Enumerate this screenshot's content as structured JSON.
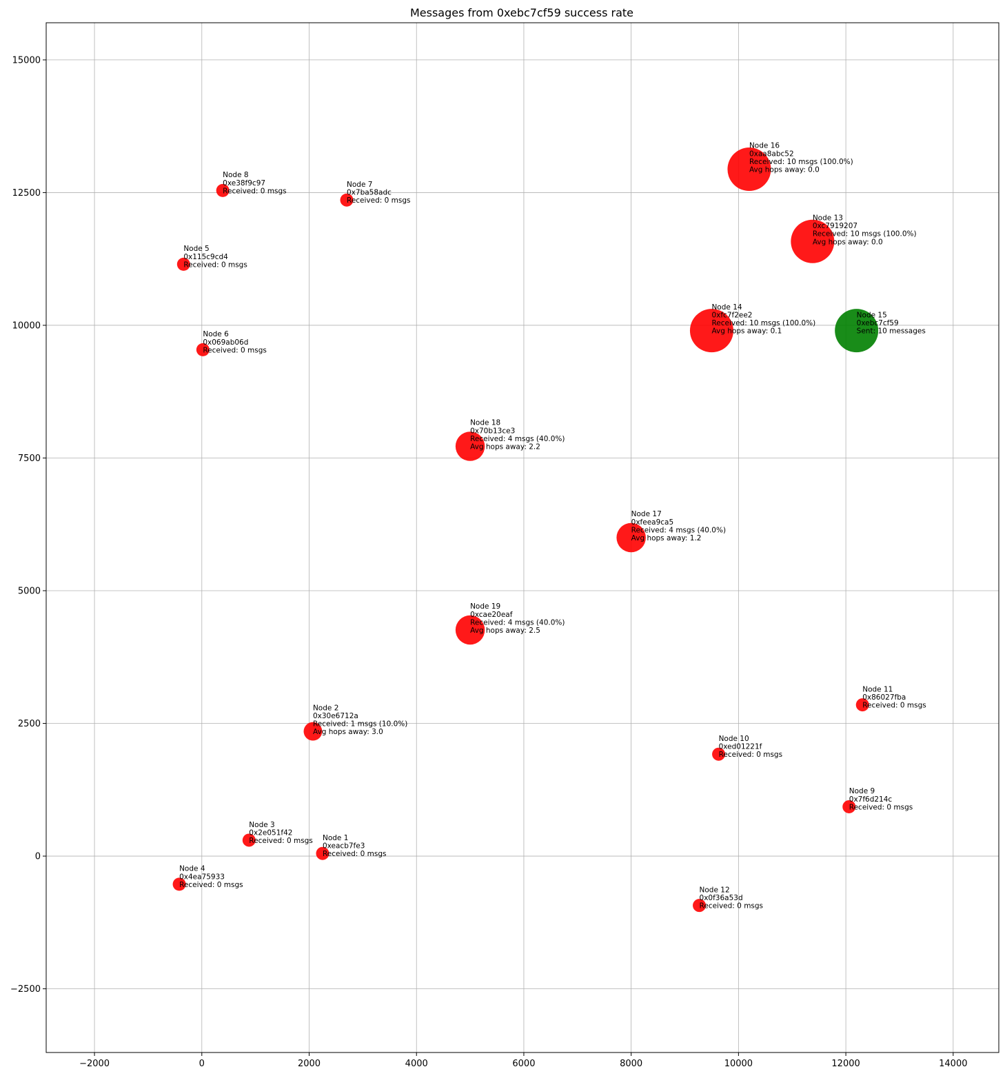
{
  "chart_data": {
    "type": "scatter",
    "title": "Messages from 0xebc7cf59 success rate",
    "xlabel": "",
    "ylabel": "",
    "xlim": [
      -2900,
      14850
    ],
    "ylim": [
      -3700,
      15700
    ],
    "xticks": [
      -2000,
      0,
      2000,
      4000,
      6000,
      8000,
      10000,
      12000,
      14000
    ],
    "xtick_labels": [
      "−2000",
      "0",
      "2000",
      "4000",
      "6000",
      "8000",
      "10000",
      "12000",
      "14000"
    ],
    "yticks": [
      -2500,
      0,
      2500,
      5000,
      7500,
      10000,
      12500,
      15000
    ],
    "ytick_labels": [
      "−2500",
      "0",
      "2500",
      "5000",
      "7500",
      "10000",
      "12500",
      "15000"
    ],
    "grid": true,
    "colors": {
      "sender": "#008000",
      "receiver": "#ff0000"
    },
    "points": [
      {
        "x": 2250,
        "y": 50,
        "role": "receiver",
        "received": 0,
        "labels": [
          "Node 1",
          "0xeacb7fe3",
          "Received: 0 msgs"
        ]
      },
      {
        "x": 2070,
        "y": 2350,
        "role": "receiver",
        "received": 1,
        "labels": [
          "Node 2",
          "0x30e6712a",
          "Received: 1 msgs (10.0%)",
          "Avg hops away: 3.0"
        ]
      },
      {
        "x": 880,
        "y": 300,
        "role": "receiver",
        "received": 0,
        "labels": [
          "Node 3",
          "0x2e051f42",
          "Received: 0 msgs"
        ]
      },
      {
        "x": -420,
        "y": -530,
        "role": "receiver",
        "received": 0,
        "labels": [
          "Node 4",
          "0x4ea75933",
          "Received: 0 msgs"
        ]
      },
      {
        "x": -340,
        "y": 11150,
        "role": "receiver",
        "received": 0,
        "labels": [
          "Node 5",
          "0x115c9cd4",
          "Received: 0 msgs"
        ]
      },
      {
        "x": 20,
        "y": 9540,
        "role": "receiver",
        "received": 0,
        "labels": [
          "Node 6",
          "0x069ab06d",
          "Received: 0 msgs"
        ]
      },
      {
        "x": 2700,
        "y": 12360,
        "role": "receiver",
        "received": 0,
        "labels": [
          "Node 7",
          "0x7ba58adc",
          "Received: 0 msgs"
        ]
      },
      {
        "x": 390,
        "y": 12540,
        "role": "receiver",
        "received": 0,
        "labels": [
          "Node 8",
          "0xe38f9c97",
          "Received: 0 msgs"
        ]
      },
      {
        "x": 12060,
        "y": 930,
        "role": "receiver",
        "received": 0,
        "labels": [
          "Node 9",
          "0x7f6d214c",
          "Received: 0 msgs"
        ]
      },
      {
        "x": 9630,
        "y": 1920,
        "role": "receiver",
        "received": 0,
        "labels": [
          "Node 10",
          "0xed01221f",
          "Received: 0 msgs"
        ]
      },
      {
        "x": 12310,
        "y": 2850,
        "role": "receiver",
        "received": 0,
        "labels": [
          "Node 11",
          "0x86027fba",
          "Received: 0 msgs"
        ]
      },
      {
        "x": 9270,
        "y": -930,
        "role": "receiver",
        "received": 0,
        "labels": [
          "Node 12",
          "0x0f36a53d",
          "Received: 0 msgs"
        ]
      },
      {
        "x": 11380,
        "y": 11580,
        "role": "receiver",
        "received": 10,
        "labels": [
          "Node 13",
          "0xc7919207",
          "Received: 10 msgs (100.0%)",
          "Avg hops away: 0.0"
        ]
      },
      {
        "x": 9500,
        "y": 9900,
        "role": "receiver",
        "received": 10,
        "labels": [
          "Node 14",
          "0xfc7f2ee2",
          "Received: 10 msgs (100.0%)",
          "Avg hops away: 0.1"
        ]
      },
      {
        "x": 12200,
        "y": 9900,
        "role": "sender",
        "received": 10,
        "labels": [
          "Node 15",
          "0xebc7cf59",
          "Sent: 10 messages"
        ]
      },
      {
        "x": 10200,
        "y": 12940,
        "role": "receiver",
        "received": 10,
        "labels": [
          "Node 16",
          "0xaa8abc52",
          "Received: 10 msgs (100.0%)",
          "Avg hops away: 0.0"
        ]
      },
      {
        "x": 8000,
        "y": 6000,
        "role": "receiver",
        "received": 4,
        "labels": [
          "Node 17",
          "0xfeea9ca5",
          "Received: 4 msgs (40.0%)",
          "Avg hops away: 1.2"
        ]
      },
      {
        "x": 5000,
        "y": 7720,
        "role": "receiver",
        "received": 4,
        "labels": [
          "Node 18",
          "0x70b13ce3",
          "Received: 4 msgs (40.0%)",
          "Avg hops away: 2.2"
        ]
      },
      {
        "x": 5000,
        "y": 4260,
        "role": "receiver",
        "received": 4,
        "labels": [
          "Node 19",
          "0xcae20eaf",
          "Received: 4 msgs (40.0%)",
          "Avg hops away: 2.5"
        ]
      }
    ]
  }
}
